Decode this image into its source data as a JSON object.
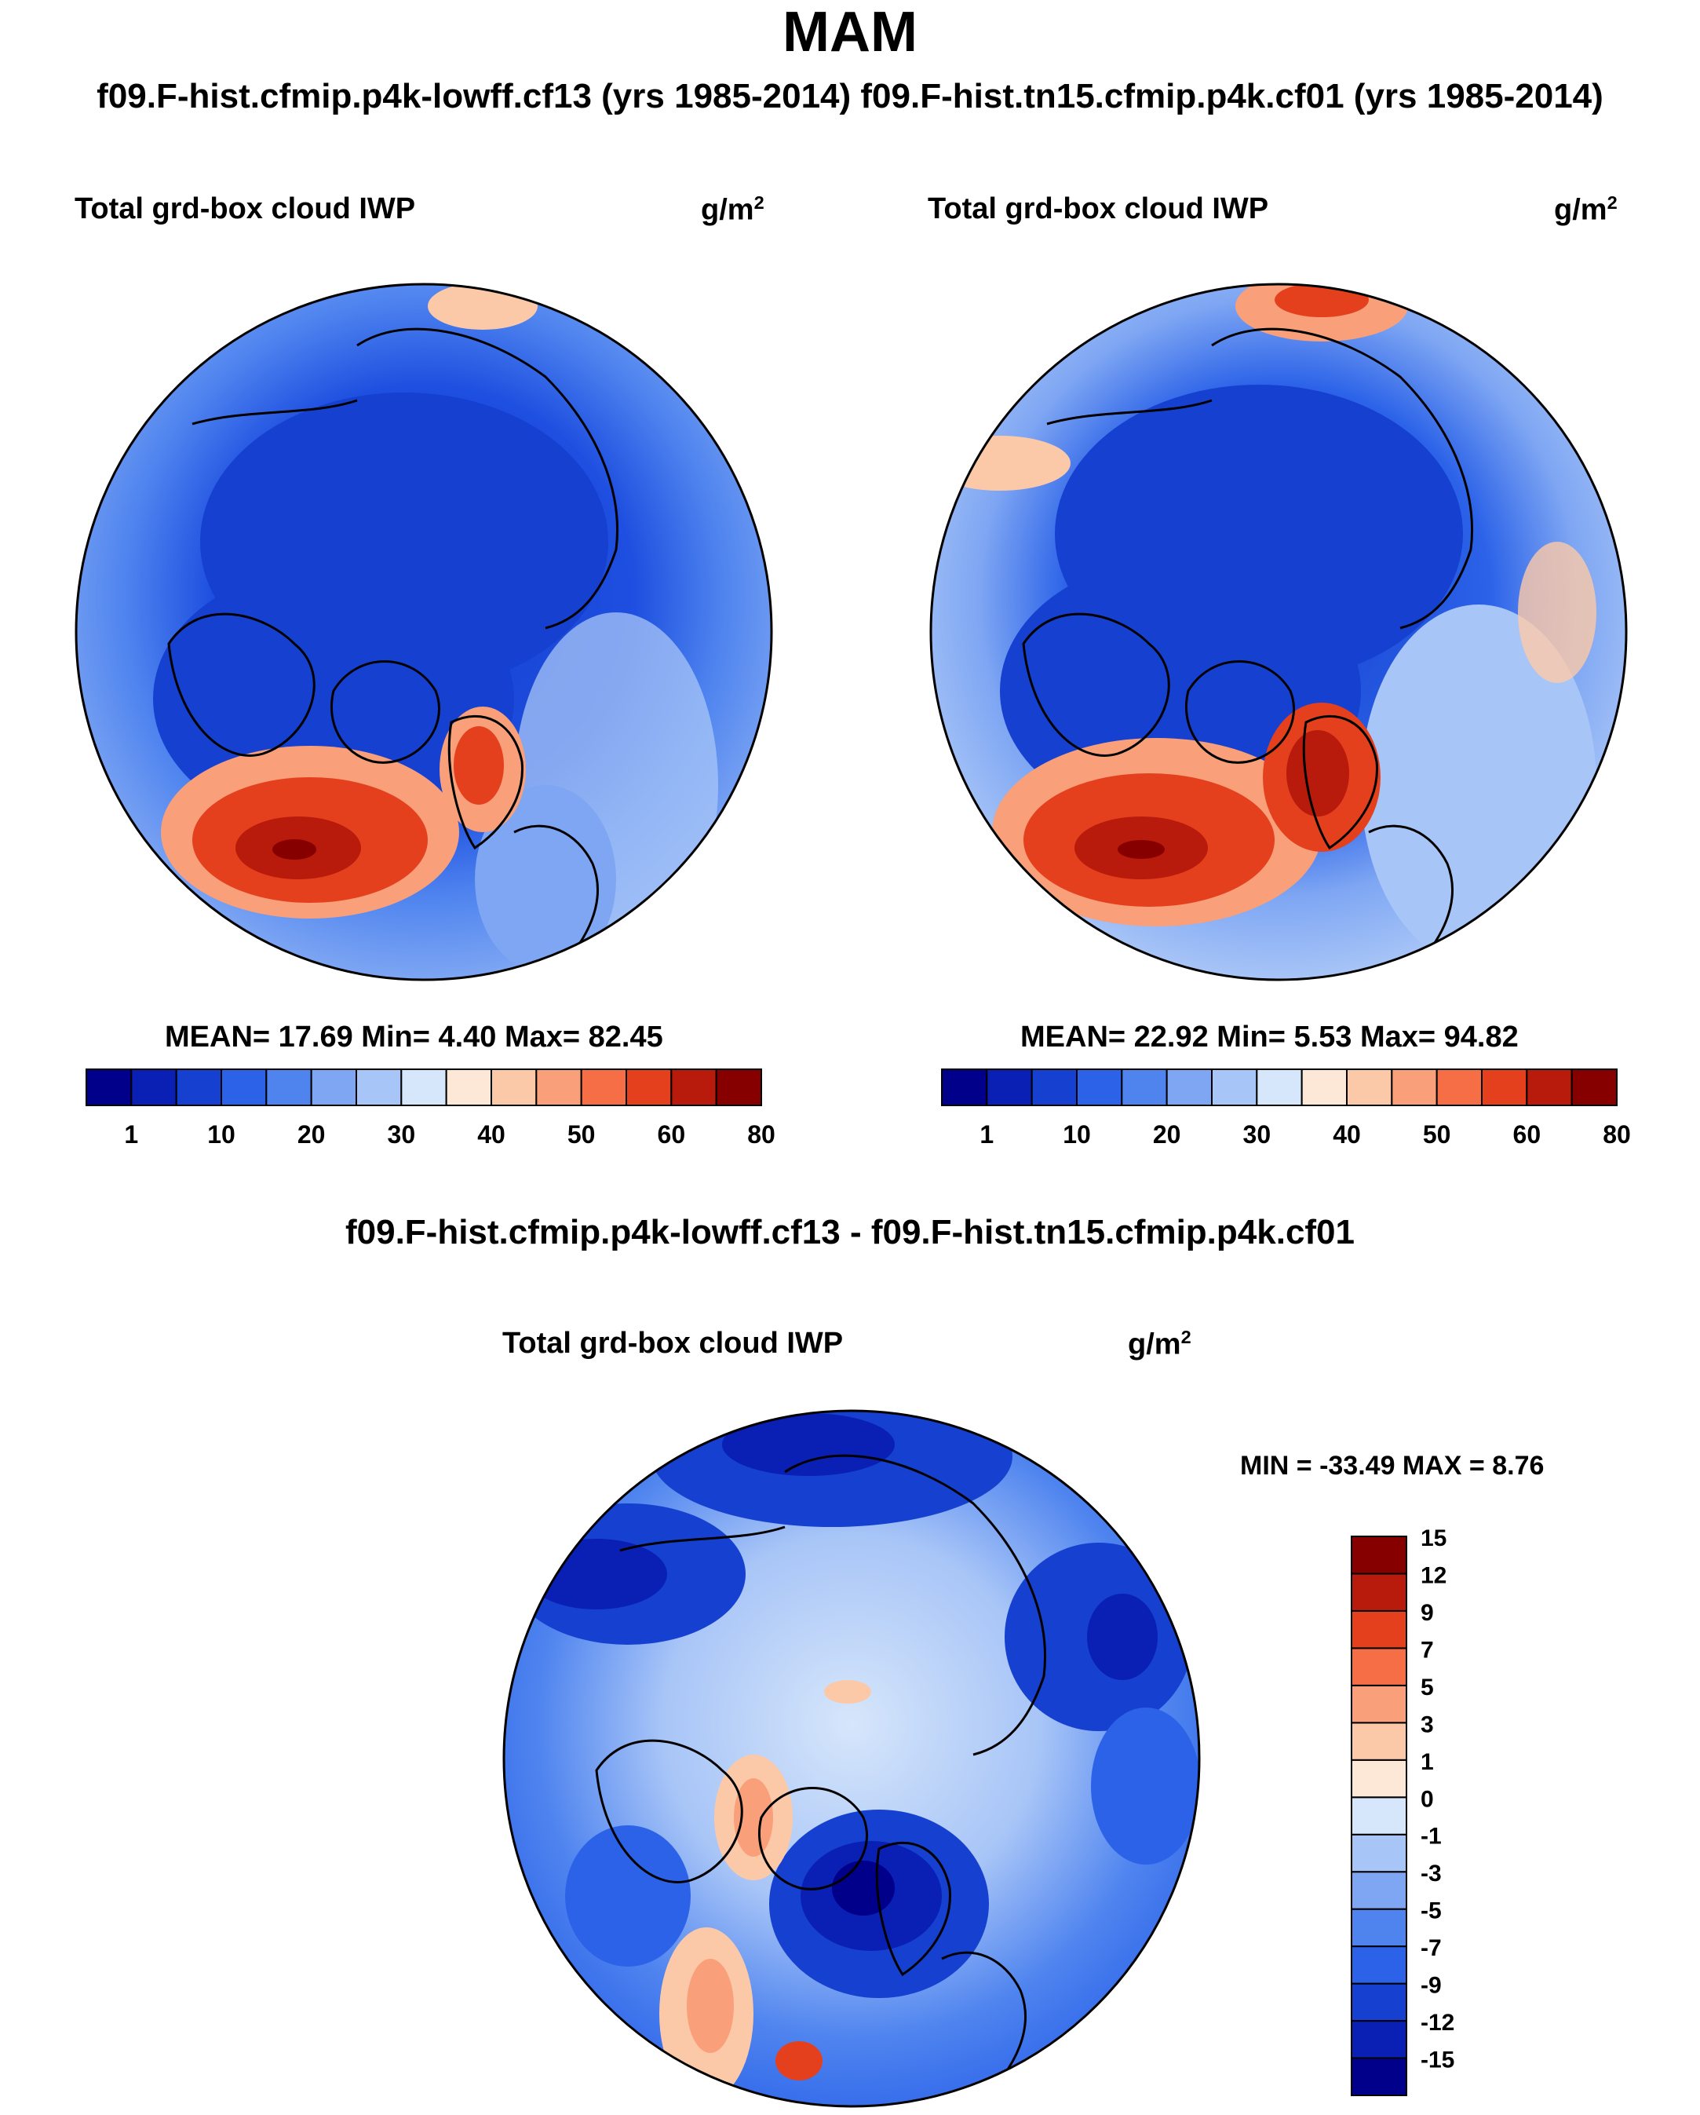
{
  "season": "MAM",
  "run_title": "f09.F-hist.cfmip.p4k-lowff.cf13 (yrs 1985-2014)  f09.F-hist.tn15.cfmip.p4k.cf01 (yrs 1985-2014)",
  "variable": "Total grd-box cloud IWP",
  "units_base": "g/m",
  "units_exp": "2",
  "panels": [
    {
      "stats": "MEAN=  17.69  Min=   4.40  Max=  82.45"
    },
    {
      "stats": "MEAN=  22.92  Min=   5.53  Max=  94.82"
    }
  ],
  "diff_title": "f09.F-hist.cfmip.p4k-lowff.cf13 - f09.F-hist.tn15.cfmip.p4k.cf01",
  "diff_stats": "MIN = -33.49 MAX =   8.76",
  "colorbar": {
    "colors": [
      "#00008b",
      "#0a1fb4",
      "#1540d0",
      "#2b62e8",
      "#4f84ef",
      "#7ea6f3",
      "#a8c5f7",
      "#d6e6fb",
      "#fde8d8",
      "#fcc9a8",
      "#f9a07a",
      "#f66e45",
      "#e5401e",
      "#b81a0c",
      "#870000"
    ],
    "ticks": [
      "1",
      "10",
      "20",
      "30",
      "40",
      "50",
      "60",
      "80"
    ]
  },
  "diff_colorbar": {
    "colors": [
      "#00008b",
      "#0a1fb4",
      "#1540d0",
      "#2b62e8",
      "#4f84ef",
      "#7ea6f3",
      "#a8c5f7",
      "#d6e6fb",
      "#fde8d8",
      "#fcc9a8",
      "#f9a07a",
      "#f66e45",
      "#e5401e",
      "#b81a0c",
      "#870000"
    ],
    "labels": [
      "-15",
      "-12",
      "-9",
      "-7",
      "-5",
      "-3",
      "-1",
      "0",
      "1",
      "3",
      "5",
      "7",
      "9",
      "12",
      "15"
    ]
  }
}
